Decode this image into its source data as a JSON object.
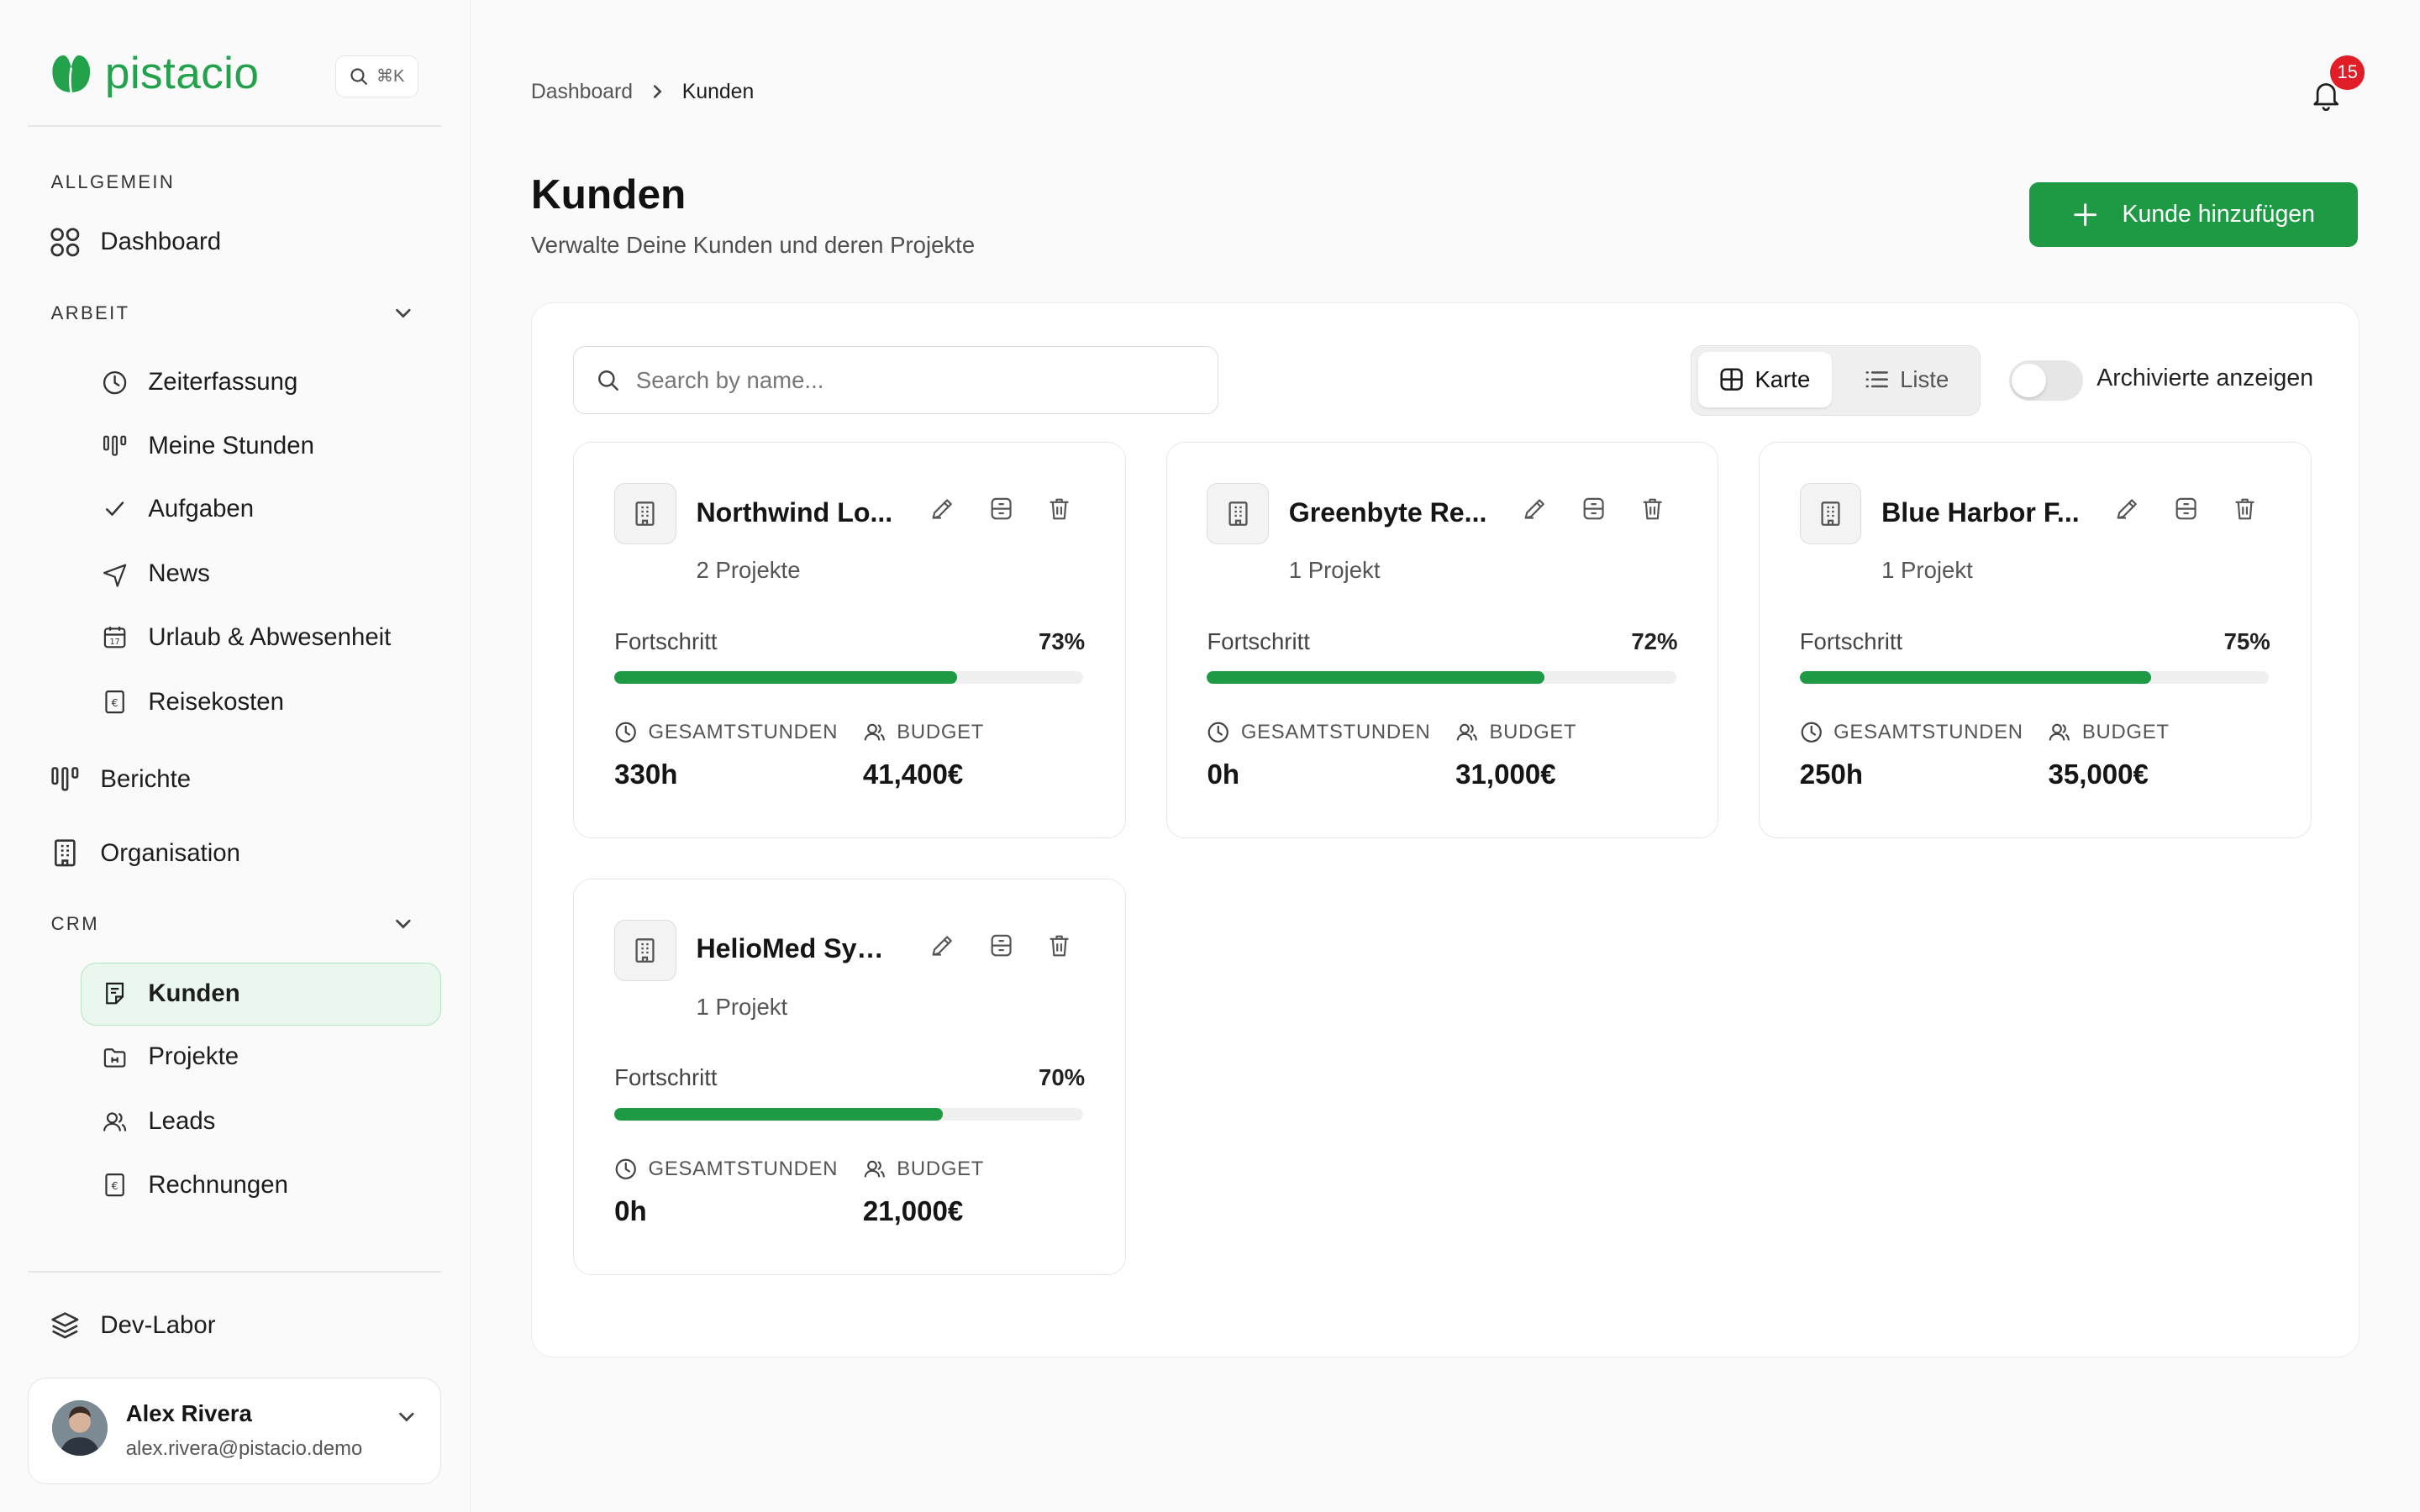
{
  "app": {
    "brand": "pistacio",
    "shortcut": "⌘K",
    "colors": {
      "accent": "#1f9a44",
      "badge": "#e11d27",
      "active_bg": "#e9f7ee"
    }
  },
  "sidebar": {
    "sections": {
      "general": "ALLGEMEIN",
      "work": "ARBEIT",
      "crm": "CRM"
    },
    "items": {
      "dashboard": "Dashboard",
      "time_tracking": "Zeiterfassung",
      "my_hours": "Meine Stunden",
      "tasks": "Aufgaben",
      "news": "News",
      "vacation": "Urlaub & Abwesenheit",
      "travel": "Reisekosten",
      "reports": "Berichte",
      "organisation": "Organisation",
      "customers": "Kunden",
      "projects": "Projekte",
      "leads": "Leads",
      "invoices": "Rechnungen",
      "devlab": "Dev-Labor"
    },
    "user": {
      "name": "Alex Rivera",
      "email": "alex.rivera@pistacio.demo"
    }
  },
  "header": {
    "breadcrumb": [
      "Dashboard",
      "Kunden"
    ],
    "notifications": "15",
    "title": "Kunden",
    "subtitle": "Verwalte Deine Kunden und deren Projekte",
    "add_button": "Kunde hinzufügen"
  },
  "toolbar": {
    "search_placeholder": "Search by name...",
    "view_card": "Karte",
    "view_list": "Liste",
    "archived_label": "Archivierte anzeigen",
    "archived_on": false
  },
  "labels": {
    "progress": "Fortschritt",
    "total_hours": "GESAMTSTUNDEN",
    "budget": "BUDGET"
  },
  "customers": [
    {
      "name": "Northwind Lo...",
      "projects": "2 Projekte",
      "progress_label": "73%",
      "progress": 73,
      "hours": "330h",
      "budget": "41,400€"
    },
    {
      "name": "Greenbyte Re...",
      "projects": "1 Projekt",
      "progress_label": "72%",
      "progress": 72,
      "hours": "0h",
      "budget": "31,000€"
    },
    {
      "name": "Blue Harbor F...",
      "projects": "1 Projekt",
      "progress_label": "75%",
      "progress": 75,
      "hours": "250h",
      "budget": "35,000€"
    },
    {
      "name": "HelioMed Syst...",
      "projects": "1 Projekt",
      "progress_label": "70%",
      "progress": 70,
      "hours": "0h",
      "budget": "21,000€"
    }
  ]
}
